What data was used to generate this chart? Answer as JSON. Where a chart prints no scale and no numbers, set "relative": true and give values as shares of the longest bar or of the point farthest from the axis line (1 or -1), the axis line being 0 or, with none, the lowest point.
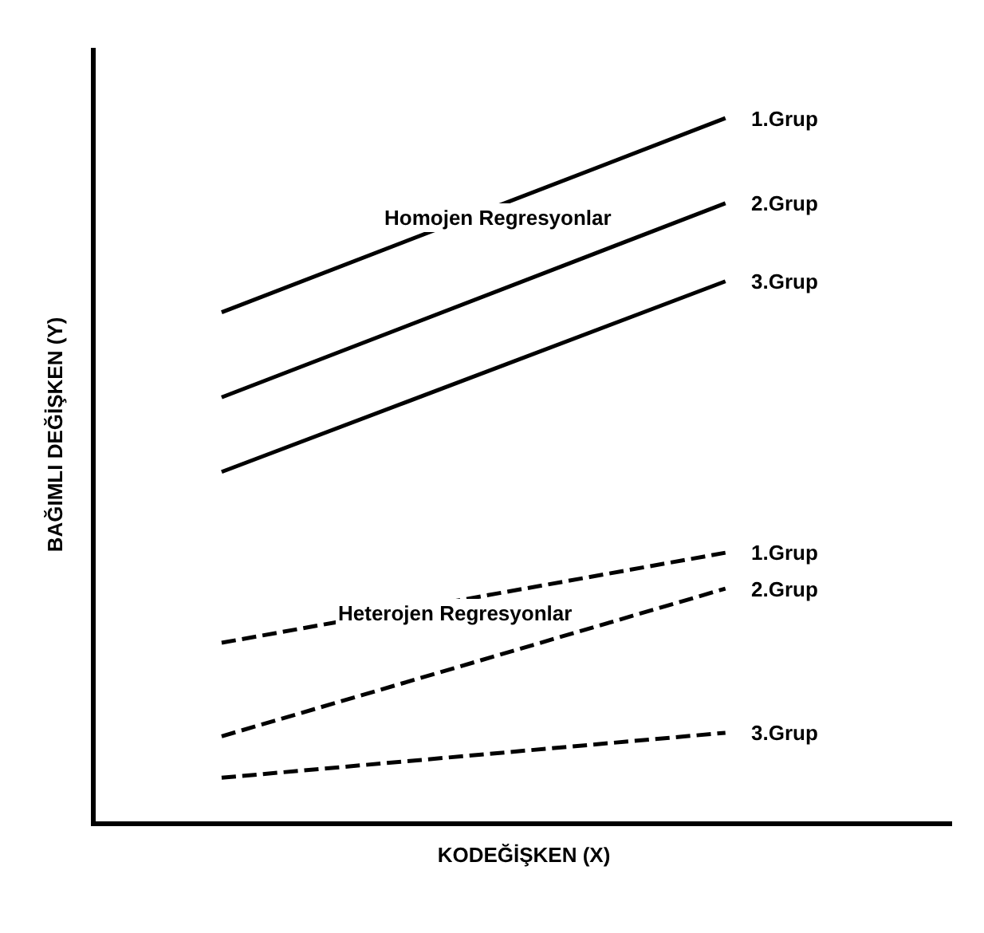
{
  "chart_data": {
    "type": "line",
    "relative": true,
    "categories": [
      null,
      null
    ],
    "xlabel": "KODEĞİŞKEN (X)",
    "ylabel": "BAĞIMLI DEĞİŞKEN (Y)",
    "annotations": [
      "Homojen Regresyonlar",
      "Heterojen Regresyonlar"
    ],
    "marker": "none",
    "legend": false,
    "series": [
      {
        "name": "1.Grup",
        "color": "#000000",
        "line_style": "solid",
        "values": [
          0.724,
          1
        ]
      },
      {
        "name": "2.Grup",
        "color": "#000000",
        "line_style": "solid",
        "values": [
          0.603,
          0.879
        ]
      },
      {
        "name": "3.Grup",
        "color": "#000000",
        "line_style": "solid",
        "values": [
          0.497,
          0.768
        ]
      },
      {
        "name": "1.Grup",
        "color": "#000000",
        "line_style": "dashed",
        "values": [
          0.254,
          0.382
        ]
      },
      {
        "name": "2.Grup",
        "color": "#000000",
        "line_style": "dashed",
        "values": [
          0.121,
          0.331
        ]
      },
      {
        "name": "3.Grup",
        "color": "#000000",
        "line_style": "dashed",
        "values": [
          0.062,
          0.126
        ]
      }
    ]
  }
}
